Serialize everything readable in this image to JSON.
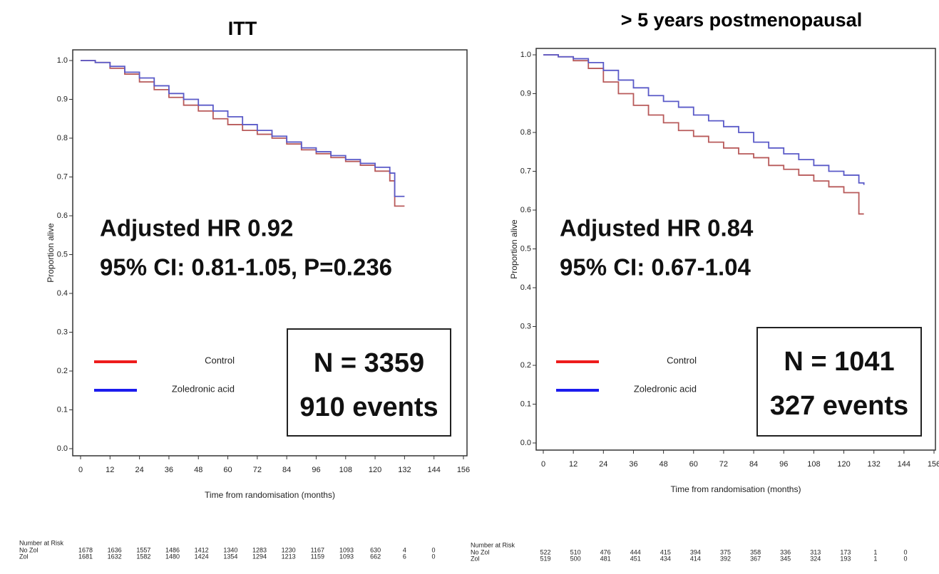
{
  "chart_data": [
    {
      "type": "line",
      "step": true,
      "title": "ITT",
      "x_label": "Time from randomisation (months)",
      "y_label": "Proportion alive",
      "xlim": [
        0,
        156
      ],
      "ylim": [
        0,
        1
      ],
      "xticks": [
        0,
        12,
        24,
        36,
        48,
        60,
        72,
        84,
        96,
        108,
        120,
        132,
        144,
        156
      ],
      "yticks": [
        {
          "value": 0,
          "label": "0.0"
        },
        0.1,
        0.2,
        0.3,
        0.4,
        0.5,
        0.6,
        0.7,
        0.8,
        0.9,
        {
          "value": 1,
          "label": "1.0"
        }
      ],
      "x": [
        0,
        6,
        12,
        18,
        24,
        30,
        36,
        42,
        48,
        54,
        60,
        66,
        72,
        78,
        84,
        90,
        96,
        102,
        108,
        114,
        120,
        126,
        128,
        132
      ],
      "series": [
        {
          "name": "Control",
          "color": "#b85a5a",
          "legend_color": "#ee1c1c",
          "values": [
            1.0,
            0.995,
            0.98,
            0.965,
            0.945,
            0.925,
            0.905,
            0.885,
            0.87,
            0.85,
            0.835,
            0.82,
            0.81,
            0.8,
            0.785,
            0.77,
            0.76,
            0.75,
            0.74,
            0.73,
            0.715,
            0.69,
            0.625,
            0.625
          ]
        },
        {
          "name": "Zoledronic acid",
          "color": "#5a5ac8",
          "legend_color": "#1c1cee",
          "values": [
            1.0,
            0.995,
            0.985,
            0.97,
            0.955,
            0.935,
            0.915,
            0.9,
            0.885,
            0.87,
            0.855,
            0.835,
            0.82,
            0.805,
            0.79,
            0.775,
            0.765,
            0.755,
            0.745,
            0.735,
            0.725,
            0.71,
            0.65,
            0.65
          ]
        }
      ],
      "annotations": [
        "Adjusted HR 0.92",
        "95% CI: 0.81-1.05, P=0.236"
      ],
      "n_box": [
        "N = 3359",
        "910 events"
      ],
      "risk_table": {
        "title": "Number at Risk",
        "rows": [
          {
            "name": "No Zol",
            "values": [
              1678,
              1636,
              1557,
              1486,
              1412,
              1340,
              1283,
              1230,
              1167,
              1093,
              630,
              4,
              0
            ]
          },
          {
            "name": "Zol",
            "values": [
              1681,
              1632,
              1582,
              1480,
              1424,
              1354,
              1294,
              1213,
              1159,
              1093,
              662,
              6,
              0
            ]
          }
        ]
      }
    },
    {
      "type": "line",
      "step": true,
      "title": "> 5 years postmenopausal",
      "x_label": "Time from randomisation (months)",
      "y_label": "Proportion alive",
      "xlim": [
        0,
        156
      ],
      "ylim": [
        0,
        1
      ],
      "xticks": [
        0,
        12,
        24,
        36,
        48,
        60,
        72,
        84,
        96,
        108,
        120,
        132,
        144,
        156
      ],
      "yticks": [
        {
          "value": 0,
          "label": "0.0"
        },
        0.1,
        0.2,
        0.3,
        0.4,
        0.5,
        0.6,
        0.7,
        0.8,
        0.9,
        {
          "value": 1,
          "label": "1.0"
        }
      ],
      "x": [
        0,
        6,
        12,
        18,
        24,
        30,
        36,
        42,
        48,
        54,
        60,
        66,
        72,
        78,
        84,
        90,
        96,
        102,
        108,
        114,
        120,
        126,
        128
      ],
      "series": [
        {
          "name": "Control",
          "color": "#b85a5a",
          "legend_color": "#ee1c1c",
          "values": [
            1.0,
            0.995,
            0.985,
            0.965,
            0.93,
            0.9,
            0.87,
            0.845,
            0.825,
            0.805,
            0.79,
            0.775,
            0.76,
            0.745,
            0.735,
            0.715,
            0.705,
            0.69,
            0.675,
            0.66,
            0.645,
            0.59,
            0.59
          ]
        },
        {
          "name": "Zoledronic acid",
          "color": "#5a5ac8",
          "legend_color": "#1c1cee",
          "values": [
            1.0,
            0.995,
            0.99,
            0.98,
            0.96,
            0.935,
            0.915,
            0.895,
            0.88,
            0.865,
            0.845,
            0.83,
            0.815,
            0.8,
            0.775,
            0.76,
            0.745,
            0.73,
            0.715,
            0.7,
            0.69,
            0.67,
            0.665
          ]
        }
      ],
      "annotations": [
        "Adjusted HR 0.84",
        "95% CI: 0.67-1.04"
      ],
      "n_box": [
        "N = 1041",
        "327 events"
      ],
      "risk_table": {
        "title": "Number at Risk",
        "rows": [
          {
            "name": "No Zol",
            "values": [
              522,
              510,
              476,
              444,
              415,
              394,
              375,
              358,
              336,
              313,
              173,
              1,
              0
            ]
          },
          {
            "name": "Zol",
            "values": [
              519,
              500,
              481,
              451,
              434,
              414,
              392,
              367,
              345,
              324,
              193,
              1,
              0
            ]
          }
        ]
      }
    }
  ]
}
